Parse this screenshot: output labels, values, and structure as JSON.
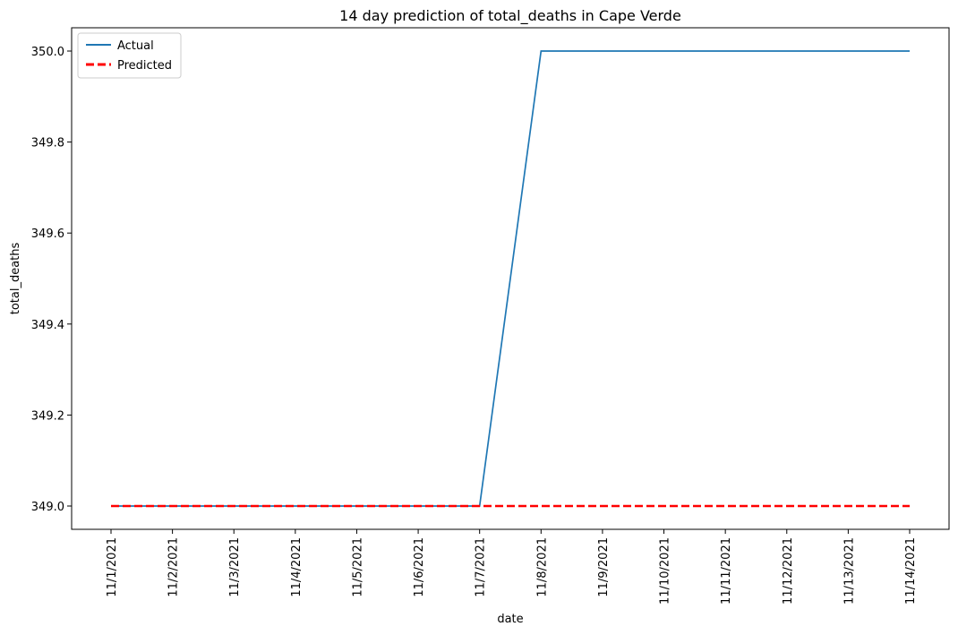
{
  "chart_data": {
    "type": "line",
    "title": "14 day prediction of total_deaths in Cape Verde",
    "xlabel": "date",
    "ylabel": "total_deaths",
    "categories": [
      "11/1/2021",
      "11/2/2021",
      "11/3/2021",
      "11/4/2021",
      "11/5/2021",
      "11/6/2021",
      "11/7/2021",
      "11/8/2021",
      "11/9/2021",
      "11/10/2021",
      "11/11/2021",
      "11/12/2021",
      "11/13/2021",
      "11/14/2021"
    ],
    "series": [
      {
        "name": "Actual",
        "values": [
          349,
          349,
          349,
          349,
          349,
          349,
          349,
          350,
          350,
          350,
          350,
          350,
          350,
          350
        ],
        "color": "#1f77b4",
        "style": "solid"
      },
      {
        "name": "Predicted",
        "values": [
          349,
          349,
          349,
          349,
          349,
          349,
          349,
          349,
          349,
          349,
          349,
          349,
          349,
          349
        ],
        "color": "#ff0000",
        "style": "dashed"
      }
    ],
    "ylim": [
      348.95,
      350.05
    ],
    "yticks": [
      "349.0",
      "349.2",
      "349.4",
      "349.6",
      "349.8",
      "350.0"
    ],
    "ytick_values": [
      349.0,
      349.2,
      349.4,
      349.6,
      349.8,
      350.0
    ],
    "grid": false,
    "legend": "top-left"
  }
}
